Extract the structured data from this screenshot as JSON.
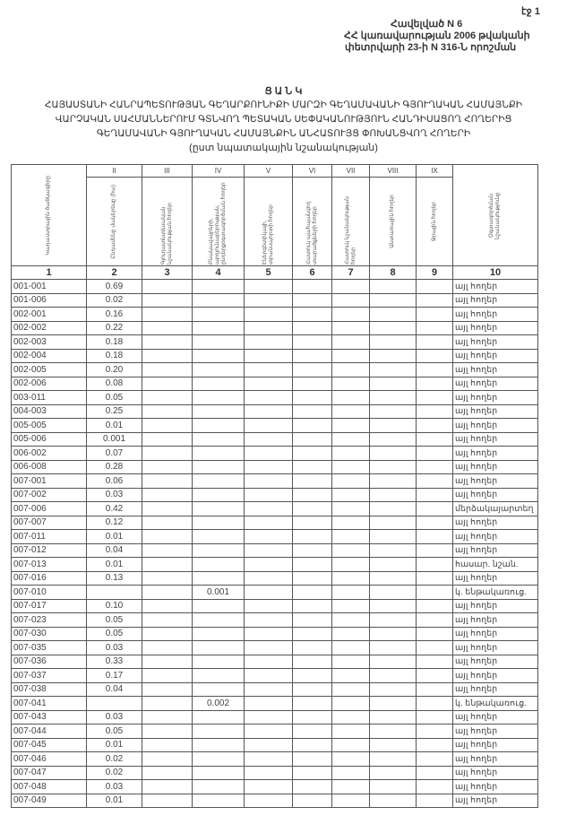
{
  "page_label": "էջ 1",
  "annex": [
    "Հավելված N 6",
    "ՀՀ կառավարության 2006 թվականի",
    "փետրվարի 23-ի N 316-Ն որոշման"
  ],
  "title": [
    "Ց Ա Ն Կ",
    "ՀԱՅԱՍՏԱՆԻ ՀԱՆՐԱՊԵՏՈՒԹՅԱՆ ԳԵՂԱՐՔՈՒՆԻՔԻ ՄԱՐԶԻ ԳԵՂԱՄԱՎԱՆԻ ԳՅՈՒՂԱԿԱՆ ՀԱՄԱՅՆՔԻ",
    "ՎԱՐՉԱԿԱՆ ՍԱՀՄԱՆՆԵՐՈՒՄ ԳՏՆՎՈՂ ՊԵՏԱԿԱՆ ՍԵՓԱԿԱՆՈՒԹՅՈՒՆ ՀԱՆԴԻՍԱՑՈՂ ՀՈՂԵՐԻՑ",
    "ԳԵՂԱՄԱՎԱՆԻ ԳՅՈՒՂԱԿԱՆ ՀԱՄԱՅՆՔԻՆ ԱՆՀԱՏՈՒՅՑ ՓՈԽԱՆՑՎՈՂ ՀՈՂԵՐԻ",
    "(ըստ նպատակային նշանակության)"
  ],
  "table": {
    "roman": [
      "",
      "II",
      "III",
      "IV",
      "V",
      "VI",
      "VII",
      "VIII",
      "IX",
      ""
    ],
    "headers": [
      "Կադաստրային ծածկագիրը",
      "Ընդամենը մակերեսը (հա)",
      "Գյուղատնտեսական նշանակության հողեր",
      "Բնակավայրերի, արդյունաբերության, ընդերքօգտագործման հողեր",
      "Էներգետիկայի, տրանսպորտի հողեր",
      "Հատուկ պահպանվող տարածքների հողեր",
      "Հատուկ նշանակության հողեր",
      "Անտառային հողեր",
      "Ջրային հողեր",
      "Օգտագործման նշանակությունը"
    ],
    "numbers": [
      "1",
      "2",
      "3",
      "4",
      "5",
      "6",
      "7",
      "8",
      "9",
      "10"
    ],
    "rows": [
      [
        "001-001",
        "0.69",
        "",
        "այլ հողեր"
      ],
      [
        "001-006",
        "0.02",
        "",
        "այլ հողեր"
      ],
      [
        "002-001",
        "0.16",
        "",
        "այլ հողեր"
      ],
      [
        "002-002",
        "0.22",
        "",
        "այլ հողեր"
      ],
      [
        "002-003",
        "0.18",
        "",
        "այլ հողեր"
      ],
      [
        "002-004",
        "0.18",
        "",
        "այլ հողեր"
      ],
      [
        "002-005",
        "0.20",
        "",
        "այլ հողեր"
      ],
      [
        "002-006",
        "0.08",
        "",
        "այլ հողեր"
      ],
      [
        "003-011",
        "0.05",
        "",
        "այլ հողեր"
      ],
      [
        "004-003",
        "0.25",
        "",
        "այլ հողեր"
      ],
      [
        "005-005",
        "0.01",
        "",
        "այլ հողեր"
      ],
      [
        "005-006",
        "0.001",
        "",
        "այլ հողեր"
      ],
      [
        "006-002",
        "0.07",
        "",
        "այլ հողեր"
      ],
      [
        "006-008",
        "0.28",
        "",
        "այլ հողեր"
      ],
      [
        "007-001",
        "0.06",
        "",
        "այլ հողեր"
      ],
      [
        "007-002",
        "0.03",
        "",
        "այլ հողեր"
      ],
      [
        "007-006",
        "0.42",
        "",
        "մերձակայարտեղ"
      ],
      [
        "007-007",
        "0.12",
        "",
        "այլ հողեր"
      ],
      [
        "007-011",
        "0.01",
        "",
        "այլ հողեր"
      ],
      [
        "007-012",
        "0.04",
        "",
        "այլ հողեր"
      ],
      [
        "007-013",
        "0.01",
        "",
        "հասար. նշան."
      ],
      [
        "007-016",
        "0.13",
        "",
        "այլ հողեր"
      ],
      [
        "007-010",
        "",
        "0.001",
        "կ. ենթակառուց."
      ],
      [
        "007-017",
        "0.10",
        "",
        "այլ հողեր"
      ],
      [
        "007-023",
        "0.05",
        "",
        "այլ հողեր"
      ],
      [
        "007-030",
        "0.05",
        "",
        "այլ հողեր"
      ],
      [
        "007-035",
        "0.03",
        "",
        "այլ հողեր"
      ],
      [
        "007-036",
        "0.33",
        "",
        "այլ հողեր"
      ],
      [
        "007-037",
        "0.17",
        "",
        "այլ հողեր"
      ],
      [
        "007-038",
        "0.04",
        "",
        "այլ հողեր"
      ],
      [
        "007-041",
        "",
        "0.002",
        "կ. ենթակառուց."
      ],
      [
        "007-043",
        "0.03",
        "",
        "այլ հողեր"
      ],
      [
        "007-044",
        "0.05",
        "",
        "այլ հողեր"
      ],
      [
        "007-045",
        "0.01",
        "",
        "այլ հողեր"
      ],
      [
        "007-046",
        "0.02",
        "",
        "այլ հողեր"
      ],
      [
        "007-047",
        "0.02",
        "",
        "այլ հողեր"
      ],
      [
        "007-048",
        "0.03",
        "",
        "այլ հողեր"
      ],
      [
        "007-049",
        "0.01",
        "",
        "այլ հողեր"
      ]
    ]
  }
}
